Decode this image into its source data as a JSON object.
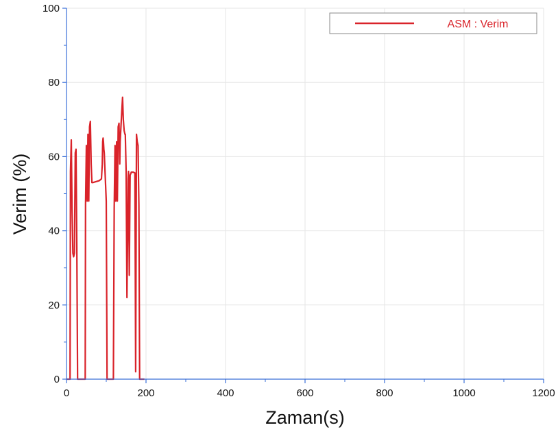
{
  "chart_data": {
    "type": "line",
    "xlabel": "Zaman(s)",
    "ylabel": "Verim (%)",
    "xlim": [
      0,
      1200
    ],
    "ylim": [
      0,
      100
    ],
    "xticks": [
      0,
      200,
      400,
      600,
      800,
      1000,
      1200
    ],
    "yticks": [
      0,
      20,
      40,
      60,
      80,
      100
    ],
    "grid": true,
    "legend_position": "top-right",
    "colors": {
      "series": "#d9232a",
      "axis": "#3a6fd8",
      "grid": "#e6e6e6"
    },
    "series": [
      {
        "name": "ASM : Verim",
        "x": [
          0,
          9,
          10,
          12,
          14,
          16,
          18,
          20,
          22,
          24,
          26,
          28,
          30,
          32,
          47,
          48,
          50,
          52,
          54,
          56,
          58,
          60,
          62,
          64,
          66,
          82,
          88,
          90,
          91,
          92,
          93,
          94,
          95,
          100,
          102,
          110,
          112,
          118,
          120,
          122,
          124,
          126,
          128,
          130,
          132,
          134,
          135,
          138,
          140,
          141,
          143,
          145,
          147,
          148,
          150,
          152,
          155,
          156,
          158,
          160,
          162,
          163,
          168,
          172,
          174,
          176,
          178,
          180,
          182,
          184,
          186,
          188,
          196
        ],
        "values": [
          0,
          0,
          56,
          64.5,
          46,
          34,
          33,
          34,
          61,
          62,
          35,
          0,
          0,
          0,
          0,
          47,
          63,
          48,
          66,
          48,
          68,
          69.5,
          58,
          53,
          53,
          53.5,
          54,
          58,
          64,
          65,
          64,
          62,
          61,
          48,
          0,
          0,
          0,
          0,
          46,
          63,
          48,
          64,
          48,
          68,
          69,
          58,
          64,
          70,
          74,
          76,
          70,
          67,
          66,
          66,
          56,
          22,
          54,
          56,
          28,
          55,
          55.5,
          55.8,
          55.8,
          55.6,
          2,
          66,
          64,
          63,
          47,
          0,
          0,
          0,
          0
        ]
      }
    ],
    "legend": {
      "label": "ASM : Verim"
    }
  }
}
